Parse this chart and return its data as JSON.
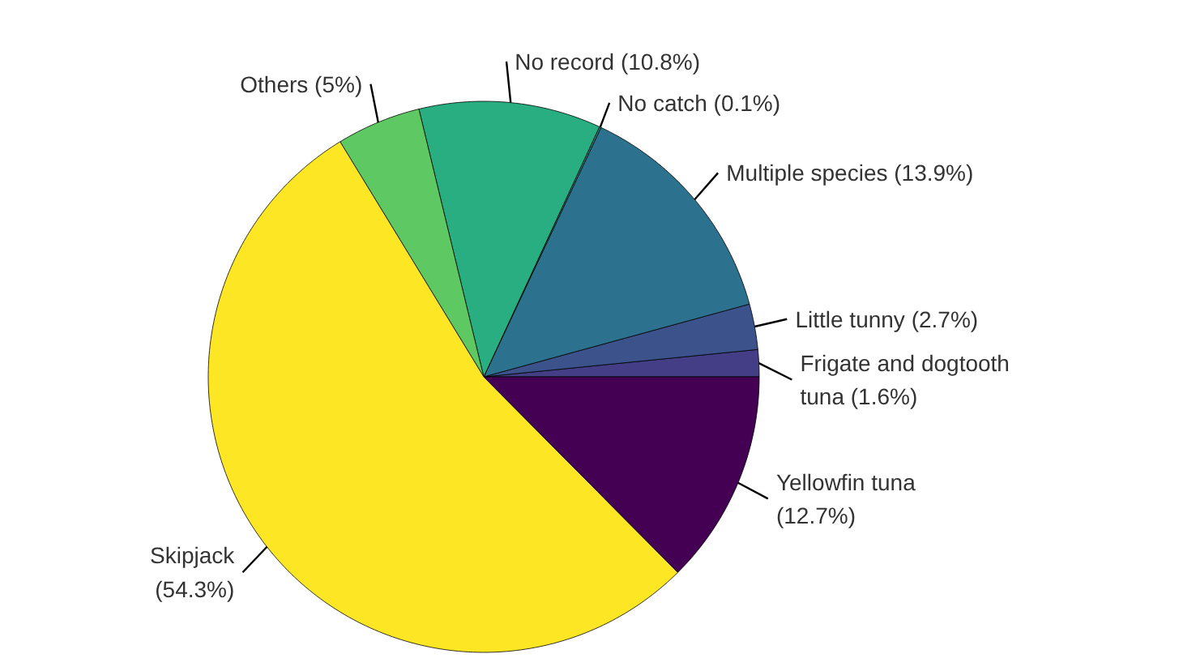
{
  "chart_data": {
    "type": "pie",
    "categories": [
      "Frigate and dogtooth\ntuna (1.6%)",
      "Little tunny (2.7%)",
      "Multiple species (13.9%)",
      "No catch (0.1%)",
      "No record (10.8%)",
      "Others (5%)",
      "Skipjack\n(54.3%)",
      "Yellowfin tuna\n(12.7%)"
    ],
    "values": [
      1.6,
      2.7,
      13.9,
      0.1,
      10.8,
      5,
      54.3,
      12.7
    ],
    "colors": [
      "#433e85",
      "#3b528b",
      "#2c728e",
      "#21908c",
      "#28ae80",
      "#5ec962",
      "#fde725",
      "#440154"
    ]
  }
}
